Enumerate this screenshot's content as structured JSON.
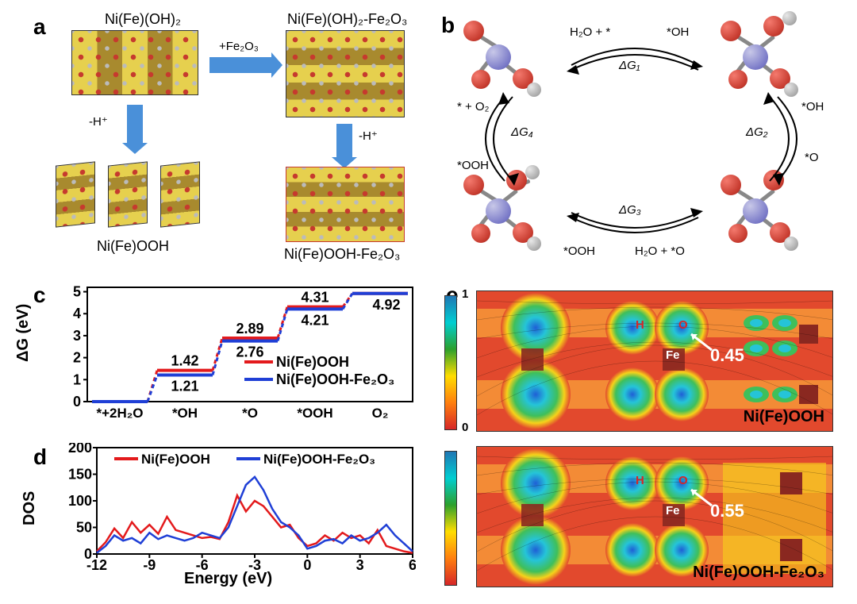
{
  "panels": {
    "a": "a",
    "b": "b",
    "c": "c",
    "d": "d",
    "e": "e"
  },
  "a": {
    "top_left": "Ni(Fe)(OH)₂",
    "top_right": "Ni(Fe)(OH)₂-Fe₂O₃",
    "bot_left": "Ni(Fe)OOH",
    "bot_right": "Ni(Fe)OOH-Fe₂O₃",
    "arrow_h": "+Fe₂O₃",
    "arrow_v": "-H⁺"
  },
  "b": {
    "step1_l": "H₂O + *",
    "step1_r": "*OH",
    "dg1": "ΔG₁",
    "step2_l": "*OH",
    "step2_r": "*O",
    "dg2": "ΔG₂",
    "step3_l": "H₂O + *O",
    "step3_r": "*OOH",
    "dg3": "ΔG₃",
    "step4_l": "*OOH",
    "step4_r": "* + O₂",
    "dg4": "ΔG₄"
  },
  "c": {
    "ylabel": "ΔG (eV)",
    "xticks": [
      "*+2H₂O",
      "*OH",
      "*O",
      "*OOH",
      "O₂"
    ],
    "yticks": [
      0,
      1,
      2,
      3,
      4,
      5
    ],
    "ylim": [
      0,
      5.2
    ],
    "legend": [
      "Ni(Fe)OOH",
      "Ni(Fe)OOH-Fe₂O₃"
    ],
    "red": [
      0,
      1.42,
      2.89,
      4.31,
      4.92
    ],
    "blue": [
      0,
      1.21,
      2.76,
      4.21,
      4.92
    ],
    "labels_top": [
      "1.42",
      "2.89",
      "4.31"
    ],
    "labels_bot": [
      "1.21",
      "2.76",
      "4.21",
      "4.92"
    ],
    "colors": {
      "red": "#e31a1c",
      "blue": "#1f3fd6"
    }
  },
  "d": {
    "ylabel": "DOS",
    "xlabel": "Energy (eV)",
    "yticks": [
      0,
      50,
      100,
      150,
      200
    ],
    "xticks": [
      -12,
      -9,
      -6,
      -3,
      0,
      3,
      6
    ],
    "xlim": [
      -12,
      6
    ],
    "ylim": [
      0,
      200
    ],
    "legend": [
      "Ni(Fe)OOH",
      "Ni(Fe)OOH-Fe₂O₃"
    ],
    "colors": {
      "red": "#e31a1c",
      "blue": "#1f3fd6"
    },
    "red": [
      [
        -12,
        5
      ],
      [
        -11.5,
        22
      ],
      [
        -11,
        48
      ],
      [
        -10.5,
        30
      ],
      [
        -10,
        60
      ],
      [
        -9.5,
        40
      ],
      [
        -9,
        55
      ],
      [
        -8.5,
        38
      ],
      [
        -8,
        70
      ],
      [
        -7.5,
        45
      ],
      [
        -7,
        40
      ],
      [
        -6.5,
        35
      ],
      [
        -6,
        30
      ],
      [
        -5.5,
        32
      ],
      [
        -5,
        28
      ],
      [
        -4.5,
        60
      ],
      [
        -4,
        110
      ],
      [
        -3.5,
        80
      ],
      [
        -3,
        100
      ],
      [
        -2.5,
        90
      ],
      [
        -2,
        70
      ],
      [
        -1.5,
        50
      ],
      [
        -1,
        55
      ],
      [
        -0.5,
        30
      ],
      [
        0,
        15
      ],
      [
        0.5,
        20
      ],
      [
        1,
        35
      ],
      [
        1.5,
        25
      ],
      [
        2,
        40
      ],
      [
        2.5,
        30
      ],
      [
        3,
        35
      ],
      [
        3.5,
        20
      ],
      [
        4,
        45
      ],
      [
        4.5,
        15
      ],
      [
        5,
        10
      ],
      [
        5.5,
        5
      ],
      [
        6,
        2
      ]
    ],
    "blue": [
      [
        -12,
        2
      ],
      [
        -11.5,
        15
      ],
      [
        -11,
        35
      ],
      [
        -10.5,
        25
      ],
      [
        -10,
        30
      ],
      [
        -9.5,
        20
      ],
      [
        -9,
        40
      ],
      [
        -8.5,
        28
      ],
      [
        -8,
        35
      ],
      [
        -7.5,
        30
      ],
      [
        -7,
        25
      ],
      [
        -6.5,
        30
      ],
      [
        -6,
        40
      ],
      [
        -5.5,
        35
      ],
      [
        -5,
        30
      ],
      [
        -4.5,
        50
      ],
      [
        -4,
        90
      ],
      [
        -3.5,
        130
      ],
      [
        -3,
        145
      ],
      [
        -2.5,
        120
      ],
      [
        -2,
        85
      ],
      [
        -1.5,
        60
      ],
      [
        -1,
        50
      ],
      [
        -0.5,
        35
      ],
      [
        0,
        10
      ],
      [
        0.5,
        15
      ],
      [
        1,
        25
      ],
      [
        1.5,
        28
      ],
      [
        2,
        20
      ],
      [
        2.5,
        35
      ],
      [
        3,
        25
      ],
      [
        3.5,
        30
      ],
      [
        4,
        40
      ],
      [
        4.5,
        55
      ],
      [
        5,
        35
      ],
      [
        5.5,
        20
      ],
      [
        6,
        5
      ]
    ]
  },
  "e": {
    "scale_top": "1",
    "scale_bot": "0",
    "top": {
      "label": "Ni(Fe)OOH",
      "fe": "Fe",
      "h": "H",
      "o": "O",
      "val": "0.45"
    },
    "bot": {
      "label": "Ni(Fe)OOH-Fe₂O₃",
      "fe": "Fe",
      "h": "H",
      "o": "O",
      "val": "0.55"
    }
  }
}
